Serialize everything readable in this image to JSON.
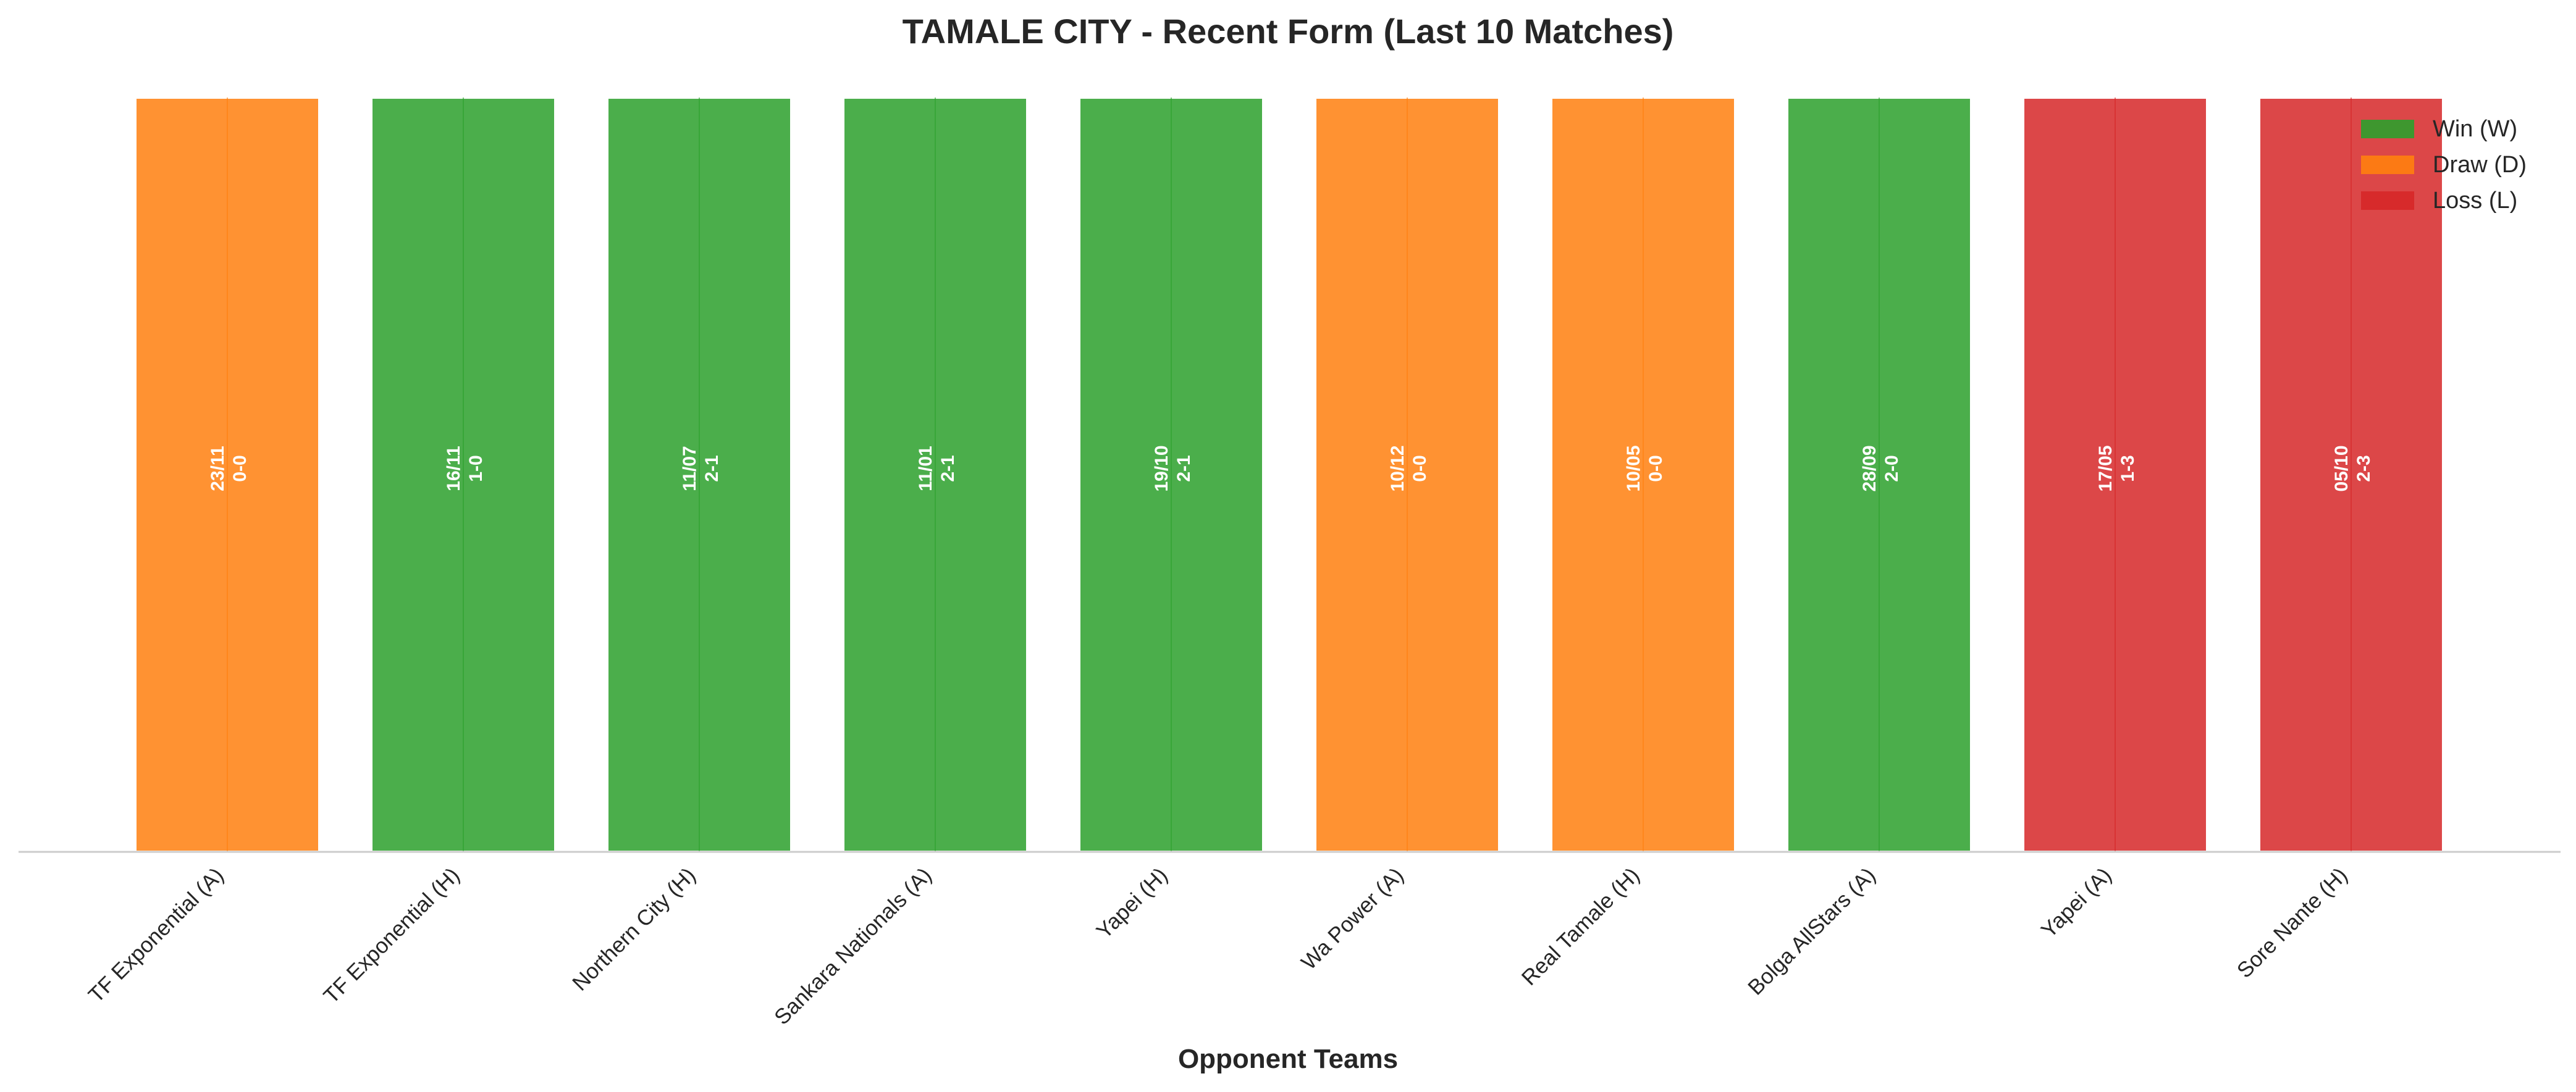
{
  "chart_data": {
    "type": "bar",
    "title": "TAMALE CITY - Recent Form (Last 10 Matches)",
    "xlabel": "Opponent Teams",
    "ylabel": "",
    "categories": [
      "TF Exponential (A)",
      "TF Exponential (H)",
      "Northern City (H)",
      "Sankara Nationals (A)",
      "Yapei (H)",
      "Wa Power (A)",
      "Real Tamale (H)",
      "Bolga AllStars (A)",
      "Yapei (A)",
      "Sore Nante (H)"
    ],
    "values": [
      1,
      1,
      1,
      1,
      1,
      1,
      1,
      1,
      1,
      1
    ],
    "results": [
      "D",
      "W",
      "W",
      "W",
      "W",
      "D",
      "D",
      "W",
      "L",
      "L"
    ],
    "dates": [
      "23/11",
      "16/11",
      "11/07",
      "11/01",
      "19/10",
      "10/12",
      "10/05",
      "28/09",
      "17/05",
      "05/10"
    ],
    "scores": [
      "0-0",
      "1-0",
      "2-1",
      "2-1",
      "2-1",
      "0-0",
      "0-0",
      "2-0",
      "1-3",
      "2-3"
    ],
    "ylim": [
      0,
      1
    ],
    "grid": false,
    "legend_position": "top-right",
    "legend": [
      {
        "key": "W",
        "label": "Win (W)",
        "color": "#2ca02c"
      },
      {
        "key": "D",
        "label": "Draw (D)",
        "color": "#ff7f0e"
      },
      {
        "key": "L",
        "label": "Loss (L)",
        "color": "#d62728"
      }
    ]
  }
}
